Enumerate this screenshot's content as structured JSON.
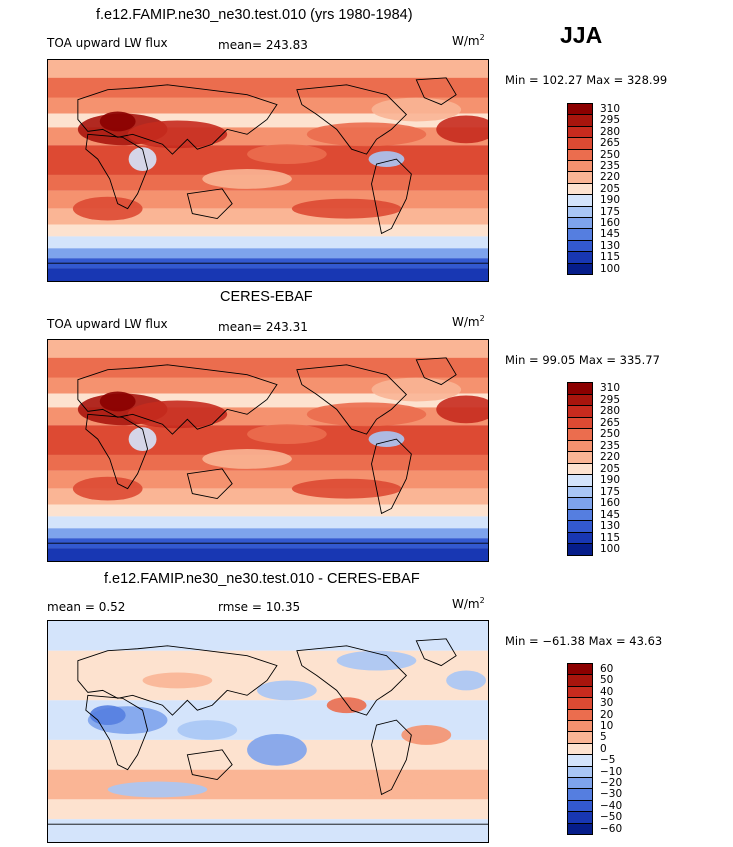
{
  "season": "JJA",
  "units_base": "W/m",
  "units_exp": "2",
  "panels": [
    {
      "title": "f.e12.FAMIP.ne30_ne30.test.010 (yrs 1980-1984)",
      "left_label": "TOA upward LW flux",
      "stat_label": "mean= 243.83",
      "minmax": "Min = 102.27 Max = 328.99"
    },
    {
      "title": "CERES-EBAF",
      "left_label": "TOA upward LW flux",
      "stat_label": "mean= 243.31",
      "minmax": "Min =  99.05 Max = 335.77"
    },
    {
      "title": "f.e12.FAMIP.ne30_ne30.test.010 - CERES-EBAF",
      "left_label": "mean =    0.52",
      "stat_label": "rmse =   10.35",
      "minmax": "Min = −61.38 Max =  43.63"
    }
  ],
  "chart_data": [
    {
      "type": "heatmap",
      "title": "f.e12.FAMIP.ne30_ne30.test.010 (yrs 1980-1984)",
      "variable": "TOA upward LW flux",
      "units": "W/m2",
      "mean": 243.83,
      "min": 102.27,
      "max": 328.99,
      "colorbar_levels": [
        "310",
        "295",
        "280",
        "265",
        "250",
        "235",
        "220",
        "205",
        "190",
        "175",
        "160",
        "145",
        "130",
        "115",
        "100"
      ],
      "colorbar_colors": [
        "#8b0000",
        "#a8150d",
        "#c72b1e",
        "#dd4a33",
        "#eb6d4e",
        "#f5926f",
        "#fab595",
        "#fde2cf",
        "#d4e4fb",
        "#a9c6f5",
        "#7ea3ec",
        "#557ee0",
        "#3359d0",
        "#1837b3",
        "#061d8a"
      ]
    },
    {
      "type": "heatmap",
      "title": "CERES-EBAF",
      "variable": "TOA upward LW flux",
      "units": "W/m2",
      "mean": 243.31,
      "min": 99.05,
      "max": 335.77,
      "colorbar_levels": [
        "310",
        "295",
        "280",
        "265",
        "250",
        "235",
        "220",
        "205",
        "190",
        "175",
        "160",
        "145",
        "130",
        "115",
        "100"
      ],
      "colorbar_colors": [
        "#8b0000",
        "#a8150d",
        "#c72b1e",
        "#dd4a33",
        "#eb6d4e",
        "#f5926f",
        "#fab595",
        "#fde2cf",
        "#d4e4fb",
        "#a9c6f5",
        "#7ea3ec",
        "#557ee0",
        "#3359d0",
        "#1837b3",
        "#061d8a"
      ]
    },
    {
      "type": "heatmap",
      "title": "f.e12.FAMIP.ne30_ne30.test.010 - CERES-EBAF",
      "variable": "difference",
      "units": "W/m2",
      "mean": 0.52,
      "rmse": 10.35,
      "min": -61.38,
      "max": 43.63,
      "colorbar_levels": [
        "60",
        "50",
        "40",
        "30",
        "20",
        "10",
        "5",
        "0",
        "−5",
        "−10",
        "−20",
        "−30",
        "−40",
        "−50",
        "−60"
      ],
      "colorbar_colors": [
        "#8b0000",
        "#a8150d",
        "#c72b1e",
        "#dd4a33",
        "#eb6d4e",
        "#f5926f",
        "#fab595",
        "#fde2cf",
        "#d4e4fb",
        "#a9c6f5",
        "#7ea3ec",
        "#557ee0",
        "#3359d0",
        "#1837b3",
        "#061d8a"
      ]
    }
  ]
}
